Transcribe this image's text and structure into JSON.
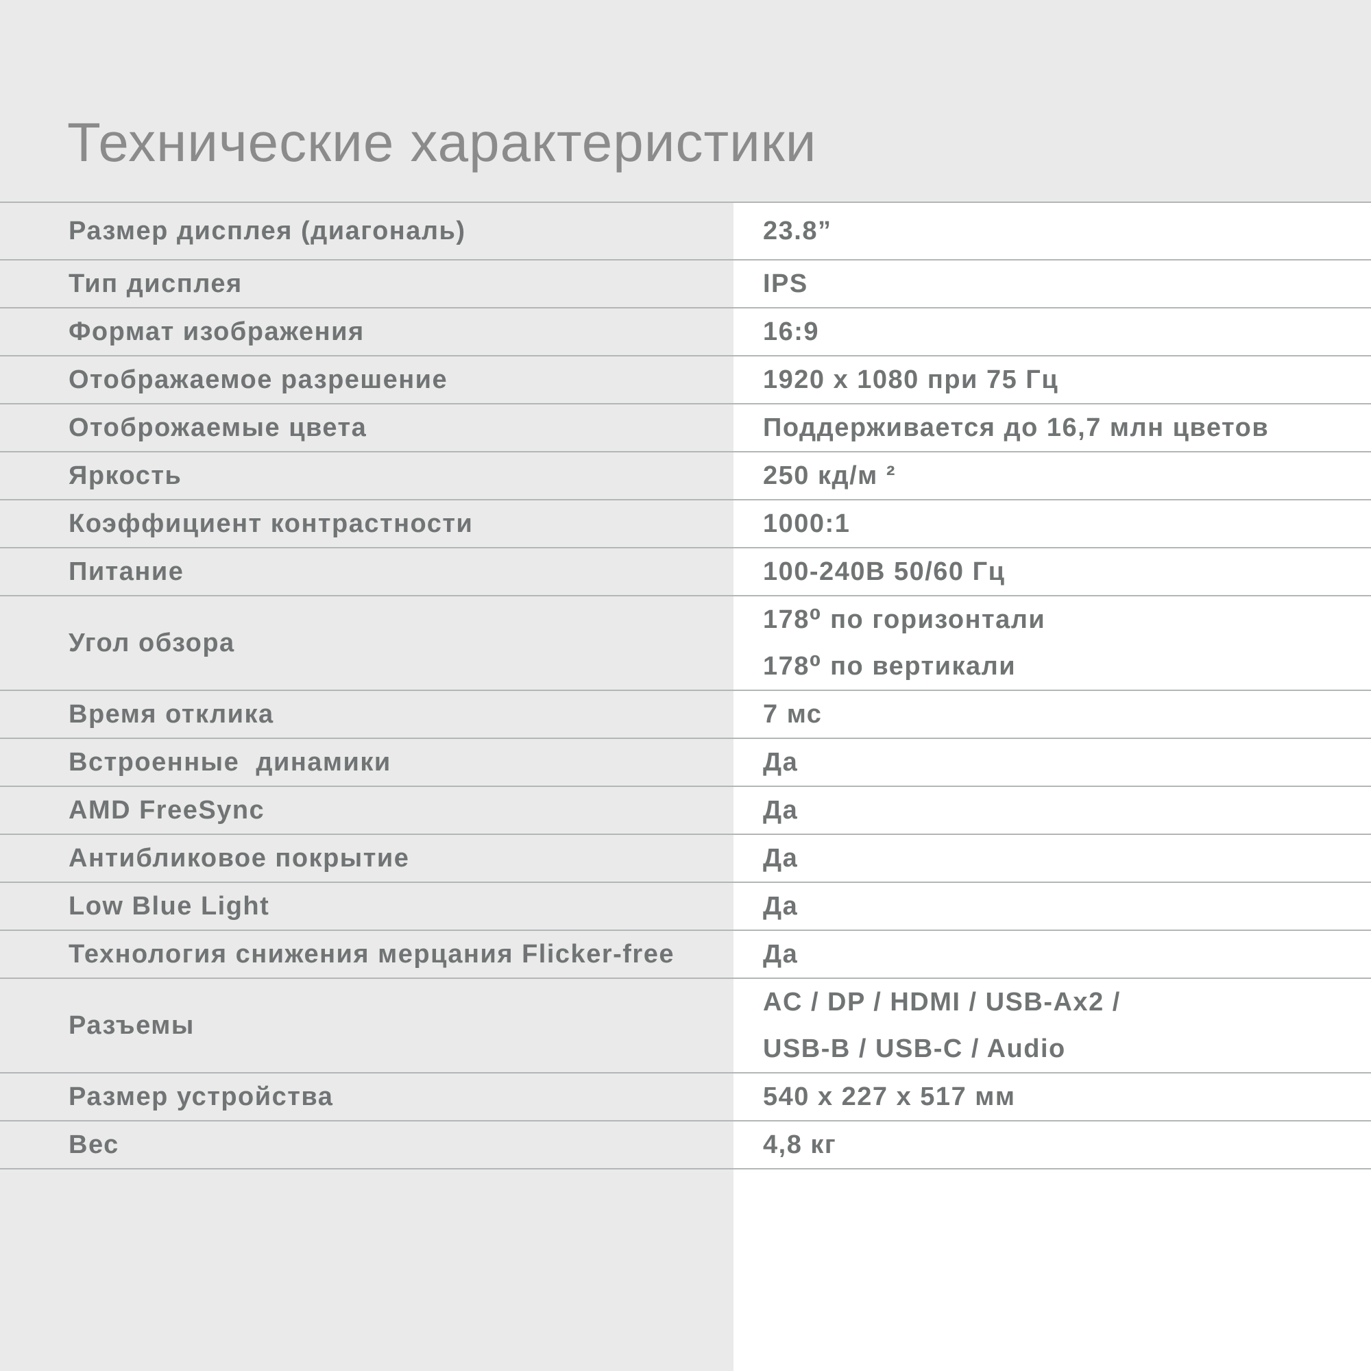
{
  "page": {
    "title": "Технические характеристики"
  },
  "colors": {
    "page_bg": "#eaeaeb",
    "panel_bg": "#ffffff",
    "line": "#b3b6b6",
    "text": "#717474",
    "title": "#8b8b8b"
  },
  "table": {
    "rows": [
      {
        "label": "Размер дисплея (диагональ)",
        "values": [
          "23.8”"
        ]
      },
      {
        "label": "Тип дисплея",
        "values": [
          "IPS"
        ]
      },
      {
        "label": "Формат изображения",
        "values": [
          "16:9"
        ]
      },
      {
        "label": "Отображаемое разрешение",
        "values": [
          "1920 x 1080 при 75 Гц"
        ]
      },
      {
        "label": "Отоброжаемые цвета",
        "values": [
          "Поддерживается до 16,7 млн цветов"
        ]
      },
      {
        "label": "Яркость",
        "values": [
          "250 кд/м ²"
        ]
      },
      {
        "label": "Коэффициент контрастности",
        "values": [
          "1000:1"
        ]
      },
      {
        "label": "Питание",
        "values": [
          "100-240В 50/60 Гц"
        ]
      },
      {
        "label": "Угол обзора",
        "values": [
          "178⁰ по горизонтали",
          "178⁰ по вертикали"
        ]
      },
      {
        "label": "Время отклика",
        "values": [
          "7 мс"
        ]
      },
      {
        "label": "Встроенные  динамики",
        "values": [
          "Да"
        ]
      },
      {
        "label": "AMD FreeSync",
        "values": [
          "Да"
        ]
      },
      {
        "label": "Антибликовое покрытие",
        "values": [
          "Да"
        ]
      },
      {
        "label": "Low Blue Light",
        "values": [
          "Да"
        ]
      },
      {
        "label": "Технология снижения мерцания Flicker-free",
        "values": [
          "Да"
        ]
      },
      {
        "label": "Разъемы",
        "values": [
          "AC / DP / HDMI / USB-Ax2 /",
          "USB-B / USB-C / Audio"
        ]
      },
      {
        "label": "Размер устройства",
        "values": [
          "540 x 227 x 517 мм"
        ]
      },
      {
        "label": "Вес",
        "values": [
          "4,8 кг"
        ]
      }
    ]
  }
}
